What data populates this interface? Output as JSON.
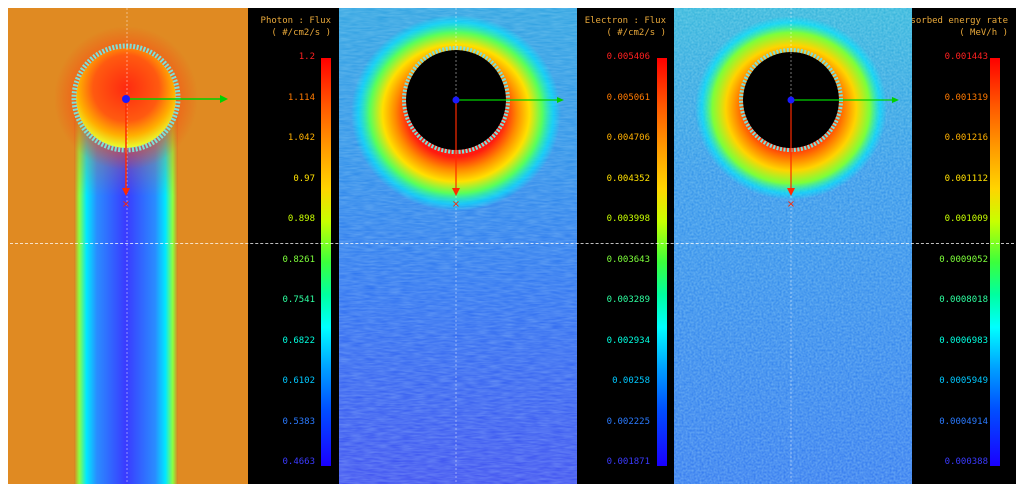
{
  "chart_data": [
    {
      "type": "heatmap",
      "title": "Photon : Flux",
      "unit": "( #/cm2/s )",
      "colorbar_ticks": [
        "1.2",
        "1.114",
        "1.042",
        "0.97",
        "0.898",
        "0.8261",
        "0.7541",
        "0.6822",
        "0.6102",
        "0.5383",
        "0.4663"
      ],
      "tick_colors": [
        "#ff2020",
        "#ff7a00",
        "#ffb000",
        "#ffe000",
        "#c8ff00",
        "#7dff3a",
        "#2dffa0",
        "#00ffe0",
        "#00c8ff",
        "#2a7aff",
        "#3a3aff"
      ],
      "range": [
        0.4663,
        1.2
      ]
    },
    {
      "type": "heatmap",
      "title": "Electron : Flux",
      "unit": "( #/cm2/s )",
      "colorbar_ticks": [
        "0.005406",
        "0.005061",
        "0.004706",
        "0.004352",
        "0.003998",
        "0.003643",
        "0.003289",
        "0.002934",
        "0.00258",
        "0.002225",
        "0.001871"
      ],
      "tick_colors": [
        "#ff2020",
        "#ff7a00",
        "#ffb000",
        "#ffe000",
        "#c8ff00",
        "#7dff3a",
        "#2dffa0",
        "#00ffe0",
        "#00c8ff",
        "#2a7aff",
        "#3a3aff"
      ],
      "range": [
        0.001871,
        0.005406
      ]
    },
    {
      "type": "heatmap",
      "title": "Total : Total absorbed energy rate",
      "unit": "( MeV/h )",
      "colorbar_ticks": [
        "0.001443",
        "0.001319",
        "0.001216",
        "0.001112",
        "0.001009",
        "0.0009052",
        "0.0008018",
        "0.0006983",
        "0.0005949",
        "0.0004914",
        "0.000388"
      ],
      "tick_colors": [
        "#ff2020",
        "#ff7a00",
        "#ffb000",
        "#ffe000",
        "#c8ff00",
        "#7dff3a",
        "#2dffa0",
        "#00ffe0",
        "#00c8ff",
        "#2a7aff",
        "#3a3aff"
      ],
      "range": [
        0.000388,
        0.001443
      ]
    }
  ],
  "markers": {
    "axis_colors": {
      "x": "#00d000",
      "y": "#ff2a00",
      "origin": "#1a1aff",
      "ring": "#7fe0d8"
    }
  }
}
